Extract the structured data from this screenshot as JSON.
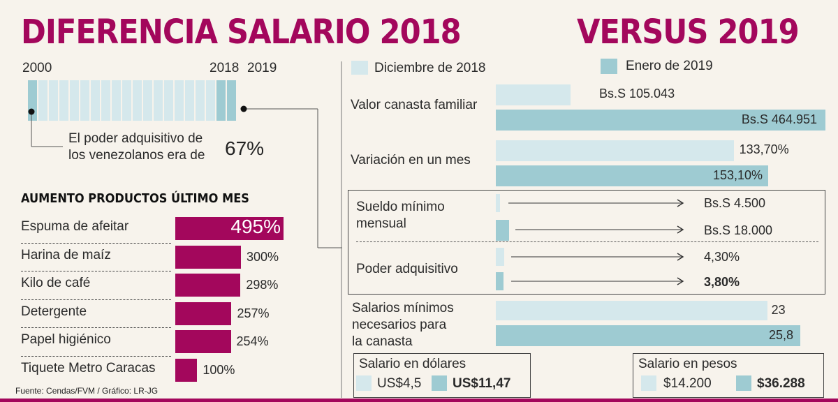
{
  "title_left": "DIFERENCIA SALARIO 2018",
  "title_right": "VERSUS 2019",
  "timeline": {
    "year_start": "2000",
    "year_2018": "2018",
    "year_2019": "2019",
    "segments": 20,
    "note_line1": "El poder adquisitivo de",
    "note_line2": "los venezolanos era de",
    "note_value": "67%"
  },
  "legend": {
    "dec": "Diciembre de 2018",
    "jan": "Enero de 2019"
  },
  "colors": {
    "magenta": "#a3075c",
    "light_blue": "#d5e8ec",
    "dark_blue": "#9ecbd2"
  },
  "chart_data": [
    {
      "type": "bar",
      "title": "AUMENTO PRODUCTOS ÚLTIMO MES",
      "categories": [
        "Espuma de afeitar",
        "Harina de maíz",
        "Kilo de café",
        "Detergente",
        "Papel higiénico",
        "Tiquete Metro Caracas"
      ],
      "values": [
        495,
        300,
        298,
        257,
        254,
        100
      ],
      "labels": [
        "495%",
        "300%",
        "298%",
        "257%",
        "254%",
        "100%"
      ],
      "unit": "%"
    },
    {
      "type": "bar",
      "title": "Diferencia salario 2018 versus 2019",
      "series": [
        {
          "name": "Diciembre de 2018"
        },
        {
          "name": "Enero de 2019"
        }
      ],
      "rows": [
        {
          "category": "Valor canasta familiar",
          "dec": 105043,
          "jan": 464951,
          "dec_label": "Bs.S 105.043",
          "jan_label": "Bs.S 464.951"
        },
        {
          "category": "Variación en un mes",
          "dec": 133.7,
          "jan": 153.1,
          "dec_label": "133,70%",
          "jan_label": "153,10%"
        },
        {
          "category": "Sueldo mínimo mensual",
          "dec": 4500,
          "jan": 18000,
          "dec_label": "Bs.S 4.500",
          "jan_label": "Bs.S 18.000"
        },
        {
          "category": "Poder adquisitivo",
          "dec": 4.3,
          "jan": 3.8,
          "dec_label": "4,30%",
          "jan_label": "3,80%"
        },
        {
          "category": "Salarios mínimos necesarios para la canasta",
          "dec": 23,
          "jan": 25.8,
          "dec_label": "23",
          "jan_label": "25,8"
        }
      ]
    }
  ],
  "rows_text": {
    "canasta": "Valor canasta familiar",
    "variacion": "Variación en un mes",
    "sueldo_1": "Sueldo mínimo",
    "sueldo_2": "mensual",
    "poder": "Poder adquisitivo",
    "salarios_1": "Salarios mínimos",
    "salarios_2": "necesarios para",
    "salarios_3": "la canasta"
  },
  "dollars": {
    "title": "Salario en dólares",
    "dec": "US$4,5",
    "jan": "US$11,47"
  },
  "pesos": {
    "title": "Salario en pesos",
    "dec": "$14.200",
    "jan": "$36.288"
  },
  "source": "Fuente: Cendas/FVM / Gráfico: LR-JG"
}
